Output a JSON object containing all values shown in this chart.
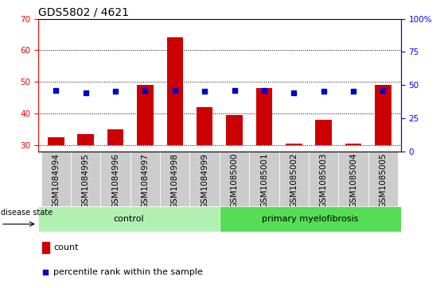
{
  "title": "GDS5802 / 4621",
  "samples": [
    "GSM1084994",
    "GSM1084995",
    "GSM1084996",
    "GSM1084997",
    "GSM1084998",
    "GSM1084999",
    "GSM1085000",
    "GSM1085001",
    "GSM1085002",
    "GSM1085003",
    "GSM1085004",
    "GSM1085005"
  ],
  "counts": [
    32.5,
    33.5,
    35.0,
    49.0,
    64.0,
    42.0,
    39.5,
    48.0,
    30.5,
    38.0,
    30.5,
    49.0
  ],
  "baseline": 30,
  "percentile_ranks": [
    46,
    44,
    45,
    46,
    46,
    45,
    46,
    46,
    44,
    45,
    45,
    46
  ],
  "ylim_left": [
    28,
    70
  ],
  "ylim_right": [
    0,
    100
  ],
  "yticks_left": [
    30,
    40,
    50,
    60,
    70
  ],
  "yticks_right": [
    0,
    25,
    50,
    75,
    100
  ],
  "bar_color": "#cc0000",
  "dot_color": "#0000cc",
  "bar_width": 0.55,
  "control_count": 6,
  "control_color": "#b2f0b2",
  "disease_color": "#55dd55",
  "legend_count_label": "count",
  "legend_pct_label": "percentile rank within the sample",
  "disease_state_label": "disease state",
  "tick_bg_color": "#cccccc",
  "label_fontsize": 8,
  "tick_fontsize": 7.5
}
